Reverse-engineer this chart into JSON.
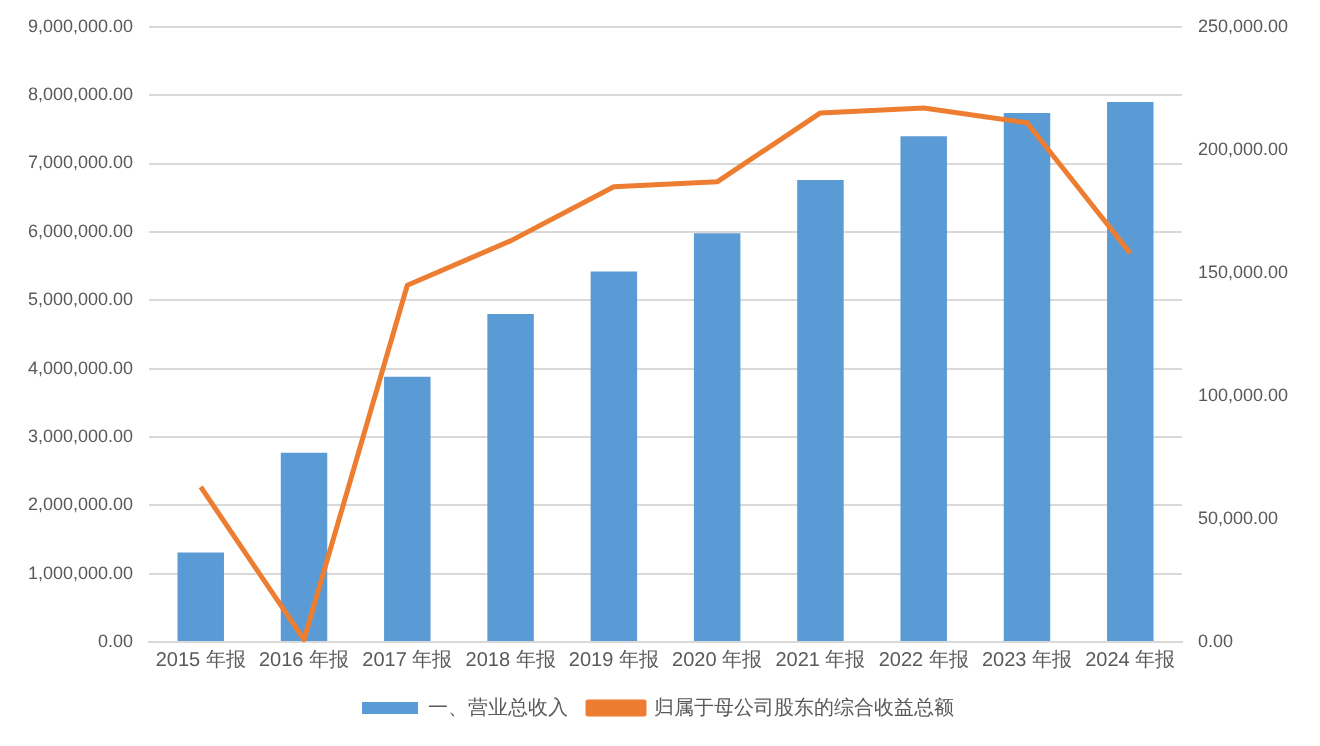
{
  "chart_data": {
    "type": "bar",
    "categories": [
      "2015 年报",
      "2016 年报",
      "2017 年报",
      "2018 年报",
      "2019 年报",
      "2020 年报",
      "2021 年报",
      "2022 年报",
      "2023 年报",
      "2024 年报"
    ],
    "series": [
      {
        "name": "一、营业总收入",
        "color": "#5b9bd5",
        "values": [
          1310000,
          2770000,
          3880000,
          4800000,
          5420000,
          5980000,
          6760000,
          7400000,
          7740000,
          7900000
        ]
      },
      {
        "name": "归属于母公司股东的综合收益总额",
        "type": "line",
        "axis": "y2",
        "color": "#ed7d31",
        "values": [
          63000,
          1000,
          145000,
          163000,
          185000,
          187000,
          215000,
          217000,
          211000,
          158000
        ]
      }
    ],
    "ylim": [
      0,
      9000000
    ],
    "yticks": [
      {
        "value": 0,
        "label": "0.00"
      },
      {
        "value": 1000000,
        "label": "1,000,000.00"
      },
      {
        "value": 2000000,
        "label": "2,000,000.00"
      },
      {
        "value": 3000000,
        "label": "3,000,000.00"
      },
      {
        "value": 4000000,
        "label": "4,000,000.00"
      },
      {
        "value": 5000000,
        "label": "5,000,000.00"
      },
      {
        "value": 6000000,
        "label": "6,000,000.00"
      },
      {
        "value": 7000000,
        "label": "7,000,000.00"
      },
      {
        "value": 8000000,
        "label": "8,000,000.00"
      },
      {
        "value": 9000000,
        "label": "9,000,000.00"
      }
    ],
    "y2lim": [
      0,
      250000
    ],
    "y2ticks": [
      {
        "value": 0,
        "label": "0.00"
      },
      {
        "value": 50000,
        "label": "50,000.00"
      },
      {
        "value": 100000,
        "label": "100,000.00"
      },
      {
        "value": 150000,
        "label": "150,000.00"
      },
      {
        "value": 200000,
        "label": "200,000.00"
      },
      {
        "value": 250000,
        "label": "250,000.00"
      }
    ],
    "grid": "y",
    "legend": "bottom",
    "marker": "none"
  }
}
